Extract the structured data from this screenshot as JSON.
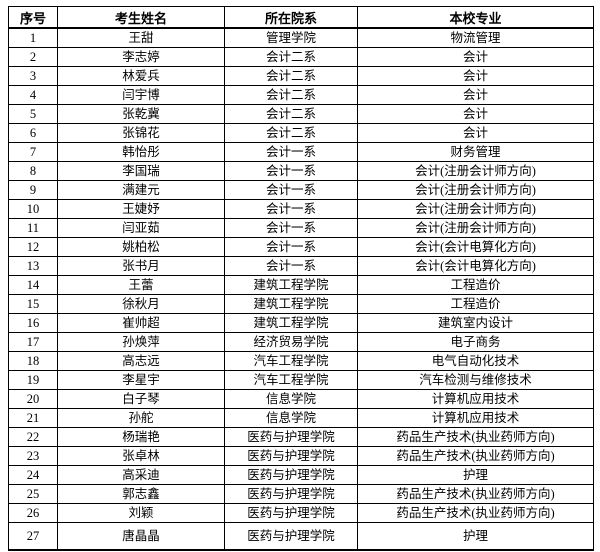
{
  "table": {
    "headers": [
      "序号",
      "考生姓名",
      "所在院系",
      "本校专业"
    ],
    "border_color": "#000000",
    "text_color": "#000000",
    "background_color": "#ffffff",
    "rows": [
      [
        "1",
        "王甜",
        "管理学院",
        "物流管理"
      ],
      [
        "2",
        "李志婷",
        "会计二系",
        "会计"
      ],
      [
        "3",
        "林爱兵",
        "会计二系",
        "会计"
      ],
      [
        "4",
        "闫宇博",
        "会计二系",
        "会计"
      ],
      [
        "5",
        "张乾冀",
        "会计二系",
        "会计"
      ],
      [
        "6",
        "张锦花",
        "会计二系",
        "会计"
      ],
      [
        "7",
        "韩怡彤",
        "会计一系",
        "财务管理"
      ],
      [
        "8",
        "李国瑞",
        "会计一系",
        "会计(注册会计师方向)"
      ],
      [
        "9",
        "满建元",
        "会计一系",
        "会计(注册会计师方向)"
      ],
      [
        "10",
        "王婕妤",
        "会计一系",
        "会计(注册会计师方向)"
      ],
      [
        "11",
        "闫亚茹",
        "会计一系",
        "会计(注册会计师方向)"
      ],
      [
        "12",
        "姚柏松",
        "会计一系",
        "会计(会计电算化方向)"
      ],
      [
        "13",
        "张书月",
        "会计一系",
        "会计(会计电算化方向)"
      ],
      [
        "14",
        "王蕾",
        "建筑工程学院",
        "工程造价"
      ],
      [
        "15",
        "徐秋月",
        "建筑工程学院",
        "工程造价"
      ],
      [
        "16",
        "崔帅超",
        "建筑工程学院",
        "建筑室内设计"
      ],
      [
        "17",
        "孙焕萍",
        "经济贸易学院",
        "电子商务"
      ],
      [
        "18",
        "高志远",
        "汽车工程学院",
        "电气自动化技术"
      ],
      [
        "19",
        "李星宇",
        "汽车工程学院",
        "汽车检测与维修技术"
      ],
      [
        "20",
        "白子琴",
        "信息学院",
        "计算机应用技术"
      ],
      [
        "21",
        "孙舵",
        "信息学院",
        "计算机应用技术"
      ],
      [
        "22",
        "杨瑞艳",
        "医药与护理学院",
        "药品生产技术(执业药师方向)"
      ],
      [
        "23",
        "张卓林",
        "医药与护理学院",
        "药品生产技术(执业药师方向)"
      ],
      [
        "24",
        "高采迪",
        "医药与护理学院",
        "护理"
      ],
      [
        "25",
        "郭志鑫",
        "医药与护理学院",
        "药品生产技术(执业药师方向)"
      ],
      [
        "26",
        "刘颖",
        "医药与护理学院",
        "药品生产技术(执业药师方向)"
      ],
      [
        "27",
        "唐晶晶",
        "医药与护理学院",
        "护理"
      ]
    ]
  }
}
